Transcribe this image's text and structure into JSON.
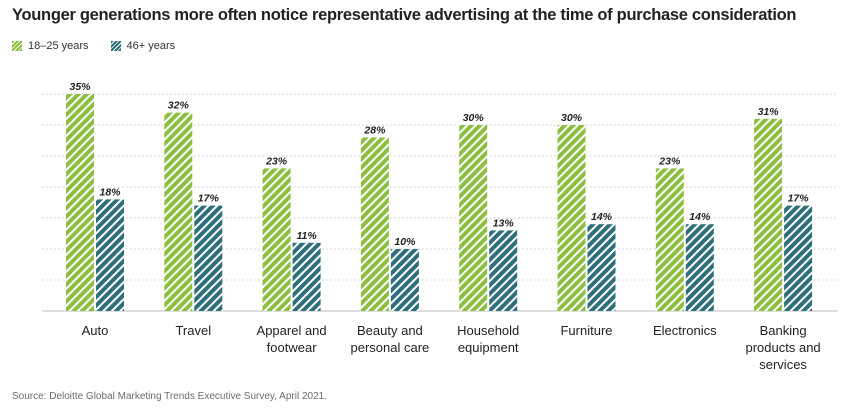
{
  "chart_data": {
    "type": "bar",
    "title": "Younger generations more often notice representative advertising at the time of purchase consideration",
    "categories": [
      "Auto",
      "Travel",
      "Apparel and\nfootwear",
      "Beauty and\npersonal care",
      "Household\nequipment",
      "Furniture",
      "Electronics",
      "Banking\nproducts and\nservices"
    ],
    "series": [
      {
        "name": "18–25 years",
        "color": "#8cbf3f",
        "values": [
          35,
          32,
          23,
          28,
          30,
          30,
          23,
          31
        ]
      },
      {
        "name": "46+ years",
        "color": "#2e6f7b",
        "values": [
          18,
          17,
          11,
          10,
          13,
          14,
          14,
          17
        ]
      }
    ],
    "value_suffix": "%",
    "ylim": [
      0,
      35
    ],
    "grid": true,
    "legend_position": "top-left"
  },
  "source": "Source: Deloitte Global Marketing Trends Executive Survey, April 2021."
}
